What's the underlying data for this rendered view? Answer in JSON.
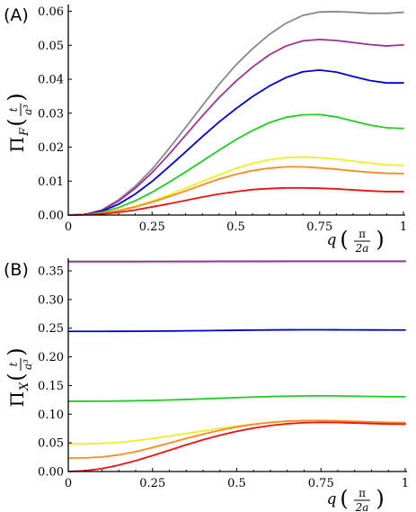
{
  "chart_data": [
    {
      "type": "line",
      "panel_label": "(A)",
      "x_ticks": [
        "0",
        "0.25",
        "0.5",
        "0.75",
        "1"
      ],
      "y_ticks": [
        "0.00",
        "0.01",
        "0.02",
        "0.03",
        "0.04",
        "0.05",
        "0.06"
      ],
      "xlim": [
        0,
        1
      ],
      "ylim": [
        0,
        0.062
      ],
      "ylabel": "Π_F (t/a³)",
      "xlabel": "q (π/2a)",
      "x": [
        0,
        0.05,
        0.1,
        0.15,
        0.2,
        0.25,
        0.3,
        0.35,
        0.4,
        0.45,
        0.5,
        0.55,
        0.6,
        0.65,
        0.7,
        0.75,
        0.8,
        0.85,
        0.9,
        0.95,
        1
      ],
      "series": [
        {
          "color": "#888888",
          "values": [
            0,
            0.0002,
            0.0015,
            0.0045,
            0.0085,
            0.0135,
            0.0195,
            0.0258,
            0.0322,
            0.0385,
            0.0442,
            0.049,
            0.0532,
            0.0565,
            0.0588,
            0.0598,
            0.0599,
            0.0597,
            0.0594,
            0.0594,
            0.0597
          ]
        },
        {
          "color": "#993399",
          "values": [
            0,
            0.0002,
            0.0014,
            0.0041,
            0.0079,
            0.0125,
            0.0178,
            0.0235,
            0.0292,
            0.0346,
            0.0394,
            0.0436,
            0.0472,
            0.0498,
            0.0513,
            0.0517,
            0.0514,
            0.0508,
            0.0502,
            0.0498,
            0.0501
          ]
        },
        {
          "color": "#0000cc",
          "values": [
            0,
            0.0001,
            0.0011,
            0.0032,
            0.0062,
            0.0099,
            0.0142,
            0.0186,
            0.0231,
            0.0274,
            0.0313,
            0.0349,
            0.038,
            0.0405,
            0.0422,
            0.0427,
            0.0421,
            0.0408,
            0.0396,
            0.0389,
            0.0389
          ]
        },
        {
          "color": "#22cc22",
          "values": [
            0,
            0.0001,
            0.0008,
            0.0022,
            0.0042,
            0.0067,
            0.0096,
            0.0127,
            0.0159,
            0.0191,
            0.0222,
            0.0249,
            0.0272,
            0.0288,
            0.0295,
            0.0296,
            0.0289,
            0.0277,
            0.0265,
            0.0257,
            0.0255
          ]
        },
        {
          "color": "#eeee22",
          "values": [
            0,
            0.0001,
            0.0005,
            0.0014,
            0.0026,
            0.0041,
            0.0059,
            0.0079,
            0.0099,
            0.0118,
            0.0137,
            0.0152,
            0.0163,
            0.0169,
            0.0171,
            0.0169,
            0.0165,
            0.0159,
            0.0153,
            0.0148,
            0.0146
          ]
        },
        {
          "color": "#ff8822",
          "values": [
            0,
            0.0001,
            0.0005,
            0.0013,
            0.0024,
            0.0038,
            0.0054,
            0.0071,
            0.0089,
            0.0106,
            0.012,
            0.0131,
            0.0138,
            0.0142,
            0.0142,
            0.0139,
            0.0135,
            0.013,
            0.0126,
            0.0123,
            0.0122
          ]
        },
        {
          "color": "#ee1111",
          "values": [
            0,
            0.0001,
            0.0003,
            0.0008,
            0.0015,
            0.0024,
            0.0033,
            0.0043,
            0.0053,
            0.0062,
            0.0069,
            0.0075,
            0.0078,
            0.008,
            0.008,
            0.0079,
            0.0077,
            0.0074,
            0.0071,
            0.0069,
            0.0069
          ]
        }
      ]
    },
    {
      "type": "line",
      "panel_label": "(B)",
      "x_ticks": [
        "0",
        "0.25",
        "0.5",
        "0.75",
        "1"
      ],
      "y_ticks": [
        "0.00",
        "0.05",
        "0.10",
        "0.15",
        "0.20",
        "0.25",
        "0.30",
        "0.35"
      ],
      "xlim": [
        0,
        1
      ],
      "ylim": [
        0,
        0.372
      ],
      "ylabel": "Π_X (t/a³)",
      "xlabel": "q (π/2a)",
      "x": [
        0,
        0.05,
        0.1,
        0.15,
        0.2,
        0.25,
        0.3,
        0.35,
        0.4,
        0.45,
        0.5,
        0.55,
        0.6,
        0.65,
        0.7,
        0.75,
        0.8,
        0.85,
        0.9,
        0.95,
        1
      ],
      "series": [
        {
          "color": "#888888",
          "values": [
            0.3665,
            0.3665,
            0.3665,
            0.3665,
            0.3665,
            0.3666,
            0.3666,
            0.3667,
            0.3667,
            0.3668,
            0.3668,
            0.3669,
            0.3669,
            0.367,
            0.367,
            0.367,
            0.367,
            0.367,
            0.367,
            0.367,
            0.367
          ]
        },
        {
          "color": "#993399",
          "values": [
            0.366,
            0.366,
            0.366,
            0.366,
            0.366,
            0.3661,
            0.3661,
            0.3662,
            0.3662,
            0.3663,
            0.3663,
            0.3664,
            0.3664,
            0.3665,
            0.3665,
            0.3665,
            0.3665,
            0.3665,
            0.3665,
            0.3665,
            0.3665
          ]
        },
        {
          "color": "#0000cc",
          "values": [
            0.2445,
            0.2445,
            0.2445,
            0.2446,
            0.2447,
            0.2449,
            0.2451,
            0.2454,
            0.2457,
            0.246,
            0.2463,
            0.2466,
            0.2469,
            0.2471,
            0.2472,
            0.2472,
            0.2471,
            0.247,
            0.2469,
            0.2468,
            0.2468
          ]
        },
        {
          "color": "#22cc22",
          "values": [
            0.1225,
            0.1225,
            0.1226,
            0.1229,
            0.1234,
            0.124,
            0.1248,
            0.1257,
            0.1267,
            0.1278,
            0.1289,
            0.1299,
            0.1308,
            0.1315,
            0.1319,
            0.132,
            0.1318,
            0.1314,
            0.1309,
            0.1306,
            0.1305
          ]
        },
        {
          "color": "#eeee22",
          "values": [
            0.0482,
            0.0483,
            0.049,
            0.0508,
            0.0537,
            0.0574,
            0.0617,
            0.0663,
            0.0709,
            0.0752,
            0.0792,
            0.0826,
            0.0854,
            0.0873,
            0.0883,
            0.0885,
            0.0879,
            0.0869,
            0.0857,
            0.0847,
            0.0842
          ]
        },
        {
          "color": "#ff8822",
          "values": [
            0.0235,
            0.0237,
            0.0253,
            0.029,
            0.0346,
            0.0417,
            0.0496,
            0.0576,
            0.0652,
            0.072,
            0.0777,
            0.0823,
            0.0857,
            0.0879,
            0.0889,
            0.089,
            0.0884,
            0.0874,
            0.0864,
            0.0857,
            0.0854
          ]
        },
        {
          "color": "#ee1111",
          "values": [
            0,
            0.0013,
            0.0051,
            0.0111,
            0.0188,
            0.0277,
            0.0371,
            0.0465,
            0.0553,
            0.0632,
            0.0701,
            0.0758,
            0.0802,
            0.0833,
            0.0851,
            0.0858,
            0.0855,
            0.0847,
            0.0837,
            0.0829,
            0.0826
          ]
        }
      ]
    }
  ]
}
